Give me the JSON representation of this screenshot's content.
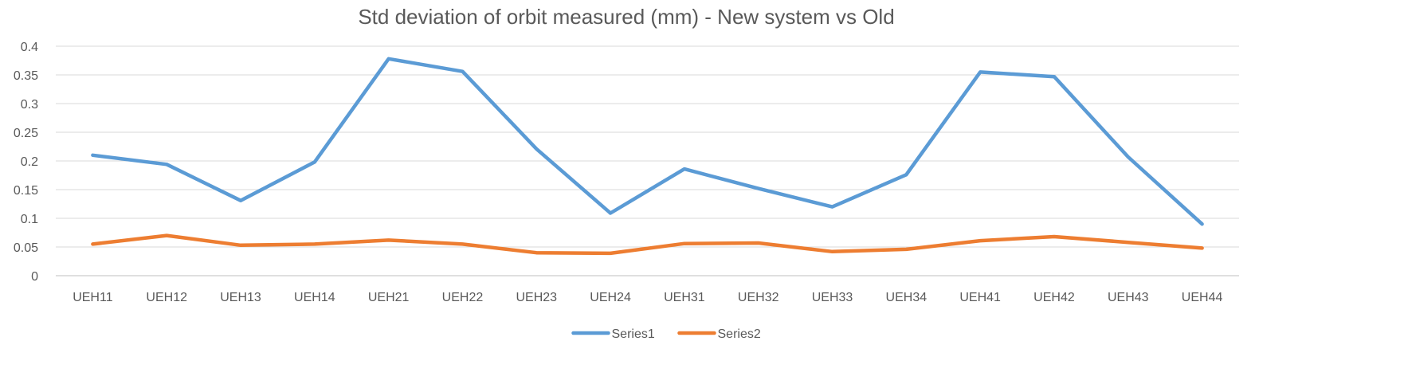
{
  "chart_data": {
    "type": "line",
    "title": "Std deviation of orbit measured (mm) - New system vs Old",
    "xlabel": "",
    "ylabel": "",
    "categories": [
      "UEH11",
      "UEH12",
      "UEH13",
      "UEH14",
      "UEH21",
      "UEH22",
      "UEH23",
      "UEH24",
      "UEH31",
      "UEH32",
      "UEH33",
      "UEH34",
      "UEH41",
      "UEH42",
      "UEH43",
      "UEH44"
    ],
    "ylim": [
      0,
      0.4
    ],
    "yticks": [
      "0",
      "0.05",
      "0.1",
      "0.15",
      "0.2",
      "0.25",
      "0.3",
      "0.35",
      "0.4"
    ],
    "grid": true,
    "legend_position": "bottom",
    "series": [
      {
        "name": "Series1",
        "color": "#5b9bd5",
        "values": [
          0.21,
          0.194,
          0.131,
          0.198,
          0.378,
          0.356,
          0.221,
          0.109,
          0.186,
          0.152,
          0.12,
          0.176,
          0.355,
          0.347,
          0.207,
          0.09
        ]
      },
      {
        "name": "Series2",
        "color": "#ed7d31",
        "values": [
          0.055,
          0.07,
          0.053,
          0.055,
          0.062,
          0.055,
          0.04,
          0.039,
          0.056,
          0.057,
          0.042,
          0.046,
          0.061,
          0.068,
          0.058,
          0.048
        ]
      }
    ]
  }
}
